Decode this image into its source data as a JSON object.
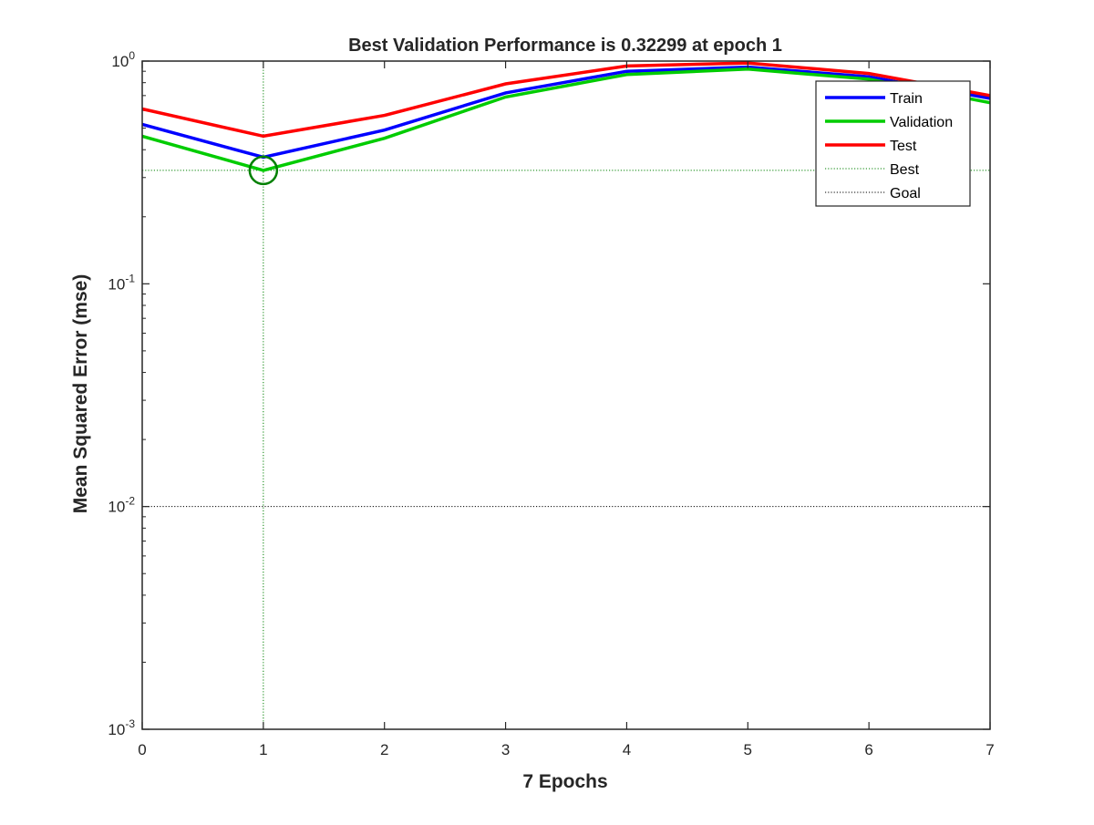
{
  "chart_data": {
    "type": "line",
    "title": "Best Validation Performance is 0.32299 at epoch 1",
    "xlabel": "7 Epochs",
    "ylabel": "Mean Squared Error  (mse)",
    "xlim": [
      0,
      7
    ],
    "ylim": [
      0.001,
      1
    ],
    "yscale": "log",
    "grid": false,
    "legend_position": "top-right",
    "x_ticks": [
      "0",
      "1",
      "2",
      "3",
      "4",
      "5",
      "6",
      "7"
    ],
    "y_ticks": [
      {
        "value": 0.001,
        "base": "10",
        "exp": "-3"
      },
      {
        "value": 0.01,
        "base": "10",
        "exp": "-2"
      },
      {
        "value": 0.1,
        "base": "10",
        "exp": "-1"
      },
      {
        "value": 1,
        "base": "10",
        "exp": "0"
      }
    ],
    "x": [
      0,
      1,
      2,
      3,
      4,
      5,
      6,
      7
    ],
    "series": [
      {
        "name": "Train",
        "color": "#0000ff",
        "style": "solid",
        "values": [
          0.52,
          0.37,
          0.49,
          0.72,
          0.9,
          0.94,
          0.85,
          0.68
        ]
      },
      {
        "name": "Validation",
        "color": "#00cc00",
        "style": "solid",
        "values": [
          0.46,
          0.323,
          0.45,
          0.69,
          0.87,
          0.92,
          0.83,
          0.65
        ]
      },
      {
        "name": "Test",
        "color": "#ff0000",
        "style": "solid",
        "values": [
          0.61,
          0.46,
          0.57,
          0.79,
          0.95,
          0.98,
          0.88,
          0.7
        ]
      }
    ],
    "best": {
      "label": "Best",
      "epoch": 1,
      "value": 0.32299,
      "color": "#008000",
      "style": "dotted"
    },
    "goal": {
      "label": "Goal",
      "value": 0.01,
      "color": "#000000",
      "style": "dotted"
    }
  }
}
